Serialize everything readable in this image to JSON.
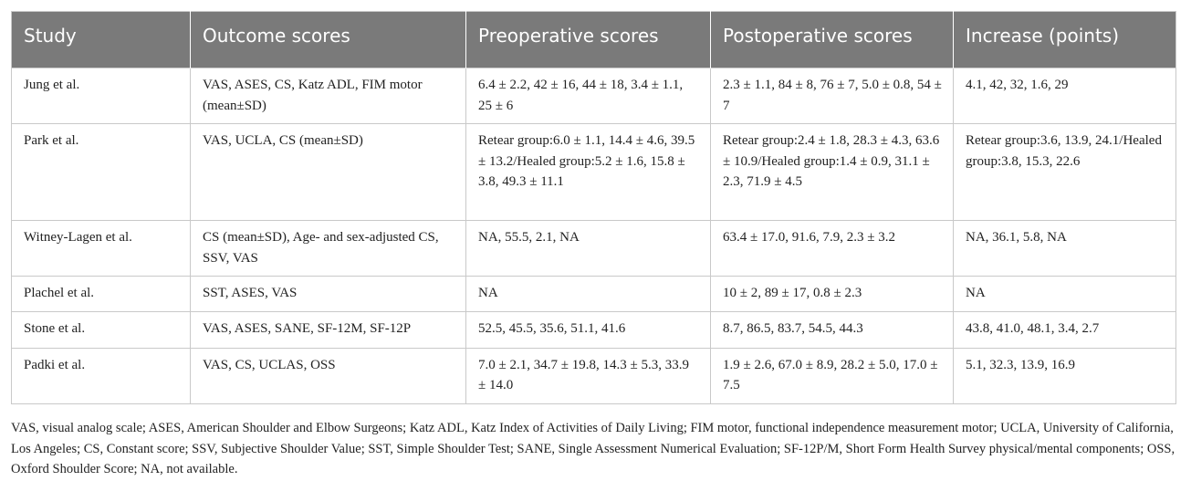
{
  "table": {
    "headers": [
      "Study",
      "Outcome scores",
      "Preoperative scores",
      "Postoperative scores",
      "Increase (points)"
    ],
    "rows": [
      [
        "Jung et al.",
        "VAS, ASES, CS, Katz ADL, FIM motor (mean±SD)",
        "6.4 ± 2.2, 42 ± 16, 44 ± 18, 3.4 ± 1.1, 25 ± 6",
        "2.3 ± 1.1, 84 ± 8, 76 ± 7, 5.0 ± 0.8, 54 ± 7",
        "4.1, 42, 32, 1.6, 29"
      ],
      [
        "Park et al.",
        "VAS, UCLA, CS (mean±SD)",
        "Retear group:6.0 ± 1.1, 14.4 ± 4.6, 39.5 ± 13.2/Healed group:5.2 ± 1.6, 15.8 ± 3.8, 49.3 ± 11.1",
        "Retear group:2.4 ± 1.8, 28.3 ± 4.3, 63.6 ± 10.9/Healed group:1.4 ± 0.9, 31.1 ± 2.3, 71.9 ± 4.5",
        "Retear group:3.6, 13.9, 24.1/Healed group:3.8, 15.3, 22.6"
      ],
      [
        "Witney-Lagen et al.",
        "CS (mean±SD), Age- and sex-adjusted CS, SSV, VAS",
        "NA, 55.5, 2.1, NA",
        "63.4 ± 17.0, 91.6, 7.9, 2.3 ± 3.2",
        "NA, 36.1, 5.8, NA"
      ],
      [
        "Plachel et al.",
        "SST, ASES, VAS",
        "NA",
        "10 ± 2, 89 ± 17, 0.8 ± 2.3",
        "NA"
      ],
      [
        "Stone et al.",
        "VAS, ASES, SANE, SF-12M, SF-12P",
        "52.5, 45.5, 35.6, 51.1, 41.6",
        "8.7, 86.5, 83.7, 54.5, 44.3",
        "43.8, 41.0, 48.1, 3.4, 2.7"
      ],
      [
        "Padki et al.",
        "VAS, CS, UCLAS, OSS",
        "7.0 ± 2.1, 34.7 ± 19.8, 14.3 ± 5.3, 33.9 ± 14.0",
        "1.9 ± 2.6, 67.0 ± 8.9, 28.2 ± 5.0, 17.0 ± 7.5",
        "5.1, 32.3, 13.9, 16.9"
      ]
    ]
  },
  "footnote": "VAS, visual analog scale; ASES, American Shoulder and Elbow Surgeons; Katz ADL, Katz Index of Activities of Daily Living; FIM motor, functional independence measurement motor; UCLA, University of California, Los Angeles; CS, Constant score; SSV, Subjective Shoulder Value; SST, Simple Shoulder Test; SANE, Single Assessment Numerical Evaluation; SF-12P/M, Short Form Health Survey physical/mental components; OSS, Oxford Shoulder Score; NA, not available."
}
